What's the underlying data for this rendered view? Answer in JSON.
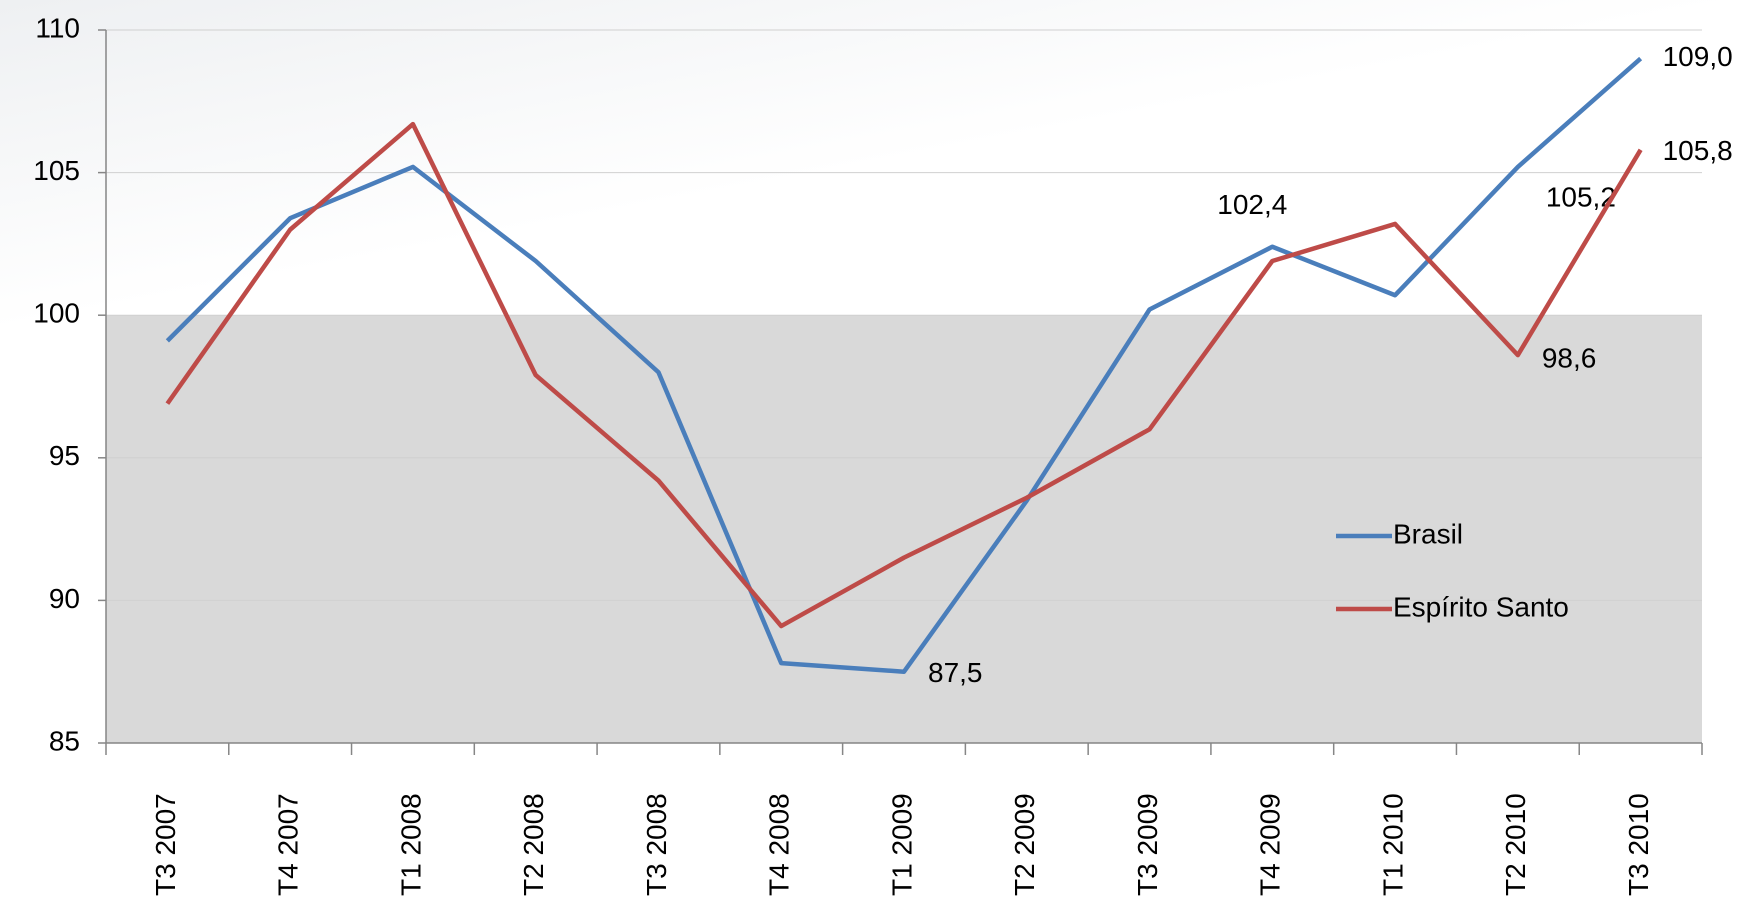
{
  "chart_data": {
    "type": "line",
    "categories": [
      "T3 2007",
      "T4 2007",
      "T1 2008",
      "T2 2008",
      "T3 2008",
      "T4 2008",
      "T1 2009",
      "T2 2009",
      "T3 2009",
      "T4 2009",
      "T1 2010",
      "T2 2010",
      "T3 2010"
    ],
    "series": [
      {
        "name": "Brasil",
        "color": "#4a7ebb",
        "values": [
          99.1,
          103.4,
          105.2,
          101.9,
          98.0,
          87.8,
          87.5,
          93.5,
          100.2,
          102.4,
          100.7,
          105.2,
          109.0
        ],
        "value_labels": [
          null,
          null,
          null,
          null,
          null,
          null,
          "87,5",
          null,
          null,
          "102,4",
          null,
          "105,2",
          "109,0"
        ]
      },
      {
        "name": "Espírito Santo",
        "color": "#be4b48",
        "values": [
          96.9,
          103.0,
          106.7,
          97.9,
          94.2,
          89.1,
          91.5,
          93.6,
          96.0,
          101.9,
          103.2,
          98.6,
          105.8
        ],
        "value_labels": [
          null,
          null,
          null,
          null,
          null,
          null,
          null,
          null,
          null,
          null,
          null,
          "98,6",
          "105,8"
        ]
      }
    ],
    "ylim": [
      85,
      110
    ],
    "yticks": [
      85,
      90,
      95,
      100,
      105,
      110
    ],
    "shaded_range": [
      85,
      100
    ],
    "shaded_color": "#d9d9d9",
    "grid": true,
    "legend": "right"
  }
}
